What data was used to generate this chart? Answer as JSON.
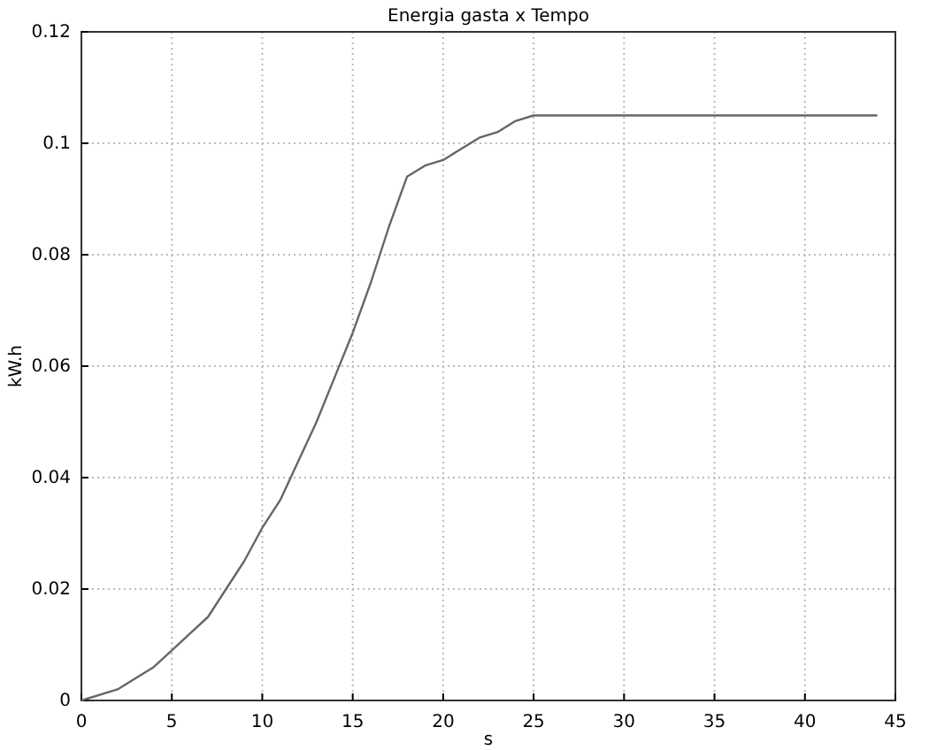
{
  "chart_data": {
    "type": "line",
    "title": "Energia gasta  x Tempo",
    "xlabel": "s",
    "ylabel": "kW.h",
    "x": [
      0,
      2,
      4,
      5,
      6,
      7,
      8,
      9,
      10,
      11,
      12,
      13,
      14,
      15,
      16,
      17,
      18,
      19,
      20,
      21,
      22,
      23,
      24,
      25,
      44
    ],
    "series": [
      {
        "color": "#666666",
        "values": [
          0,
          0.002,
          0.006,
          0.009,
          0.012,
          0.015,
          0.02,
          0.025,
          0.031,
          0.036,
          0.043,
          0.05,
          0.058,
          0.066,
          0.075,
          0.085,
          0.094,
          0.096,
          0.097,
          0.099,
          0.101,
          0.102,
          0.104,
          0.105,
          0.105
        ]
      }
    ],
    "xlim": [
      0,
      45
    ],
    "xticks": [
      0,
      5,
      10,
      15,
      20,
      25,
      30,
      35,
      40,
      45
    ],
    "ylim": [
      0,
      0.12
    ],
    "yticks": [
      0,
      0.02,
      0.04,
      0.06,
      0.08,
      0.1,
      0.12
    ],
    "grid": true,
    "line_style": "solid",
    "marker": "none"
  }
}
